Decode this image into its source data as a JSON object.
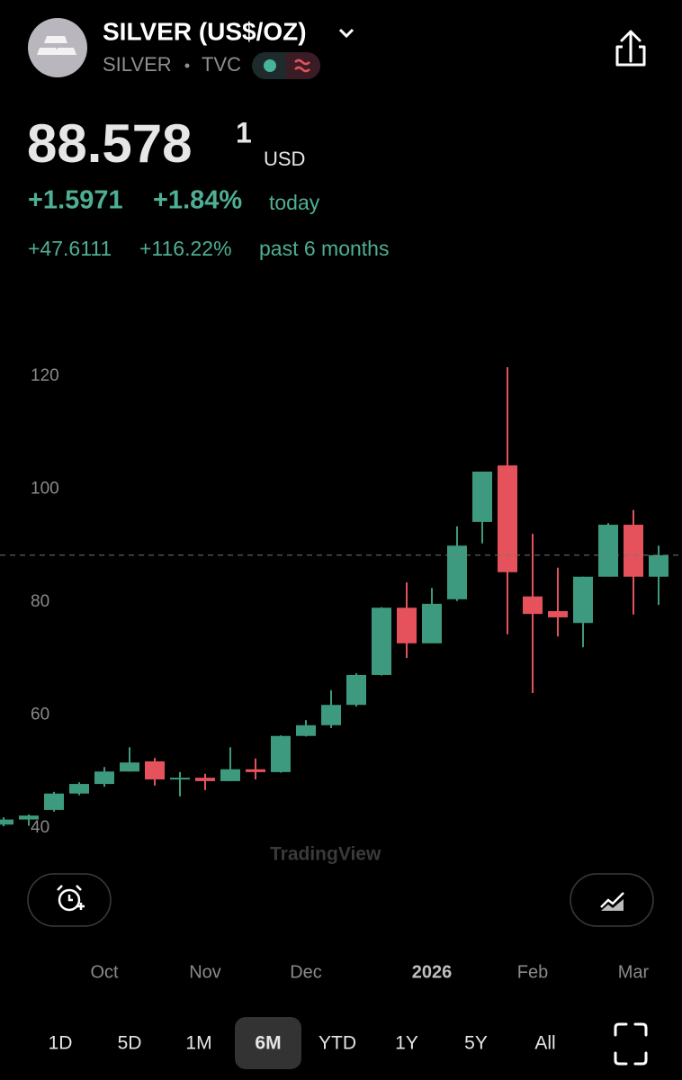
{
  "header": {
    "title": "SILVER (US$/OZ)",
    "symbol": "SILVER",
    "source": "TVC",
    "price": "88.578",
    "price_superscript": "1",
    "currency": "USD",
    "change": "+1.5971",
    "change_percent": "+1.84%",
    "change_label": "today",
    "period_change": "+47.6111",
    "period_percent": "+116.22%",
    "period_label": "past 6 months"
  },
  "chart_data": {
    "type": "candlestick",
    "categories": [
      null,
      null,
      null,
      null,
      "Oct",
      null,
      null,
      null,
      "Nov",
      null,
      null,
      null,
      "Dec",
      null,
      null,
      null,
      null,
      "2026",
      null,
      null,
      null,
      "Feb",
      null,
      null,
      null,
      "Mar",
      null
    ],
    "open": [
      40.6,
      41.5,
      43.2,
      46.1,
      47.8,
      50.0,
      51.8,
      48.6,
      48.9,
      48.3,
      50.4,
      49.9,
      56.3,
      58.2,
      61.8,
      67.1,
      79.0,
      72.7,
      80.5,
      94.2,
      104.2,
      81.0,
      78.4,
      76.3,
      84.5,
      93.7,
      84.5
    ],
    "high": [
      41.9,
      42.4,
      46.4,
      48.1,
      50.8,
      54.3,
      52.4,
      49.9,
      49.6,
      54.3,
      52.3,
      56.4,
      59.1,
      64.4,
      67.4,
      79.1,
      83.5,
      82.5,
      93.4,
      103.1,
      121.6,
      92.1,
      86.1,
      84.5,
      94.0,
      96.3,
      90.0
    ],
    "low": [
      40.3,
      40.4,
      42.9,
      45.8,
      47.3,
      50.0,
      47.5,
      45.6,
      46.7,
      48.3,
      48.6,
      49.8,
      56.2,
      57.7,
      61.5,
      67.0,
      70.1,
      72.7,
      80.2,
      90.4,
      74.3,
      63.9,
      73.9,
      72.0,
      84.5,
      77.8,
      79.5
    ],
    "close": [
      41.5,
      42.2,
      46.1,
      47.8,
      50.0,
      51.6,
      48.6,
      48.9,
      48.3,
      50.4,
      49.9,
      56.3,
      58.2,
      61.8,
      67.1,
      79.0,
      72.7,
      79.7,
      90.0,
      103.1,
      85.3,
      77.9,
      77.3,
      84.5,
      93.7,
      84.5,
      88.3
    ],
    "up_color": "#3d9a7e",
    "down_color": "#e5525c",
    "ylim": [
      40,
      120
    ],
    "yticks": [
      40,
      60,
      80,
      100,
      120
    ],
    "watermark": "TradingView"
  },
  "timeframes": [
    "1D",
    "5D",
    "1M",
    "6M",
    "YTD",
    "1Y",
    "5Y",
    "All"
  ],
  "selected_timeframe": "6M"
}
